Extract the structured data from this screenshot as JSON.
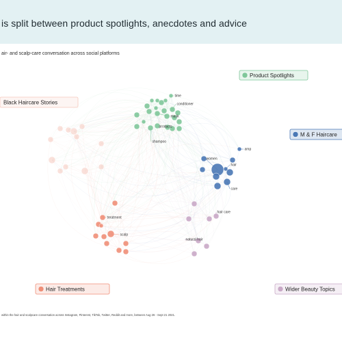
{
  "title": "is split between product spotlights, anecdotes and advice",
  "subtitle": "air- and scalp-care conversation across social platforms",
  "footnote": "within the hair and scalpcare conversation across Instagram, Pinterest, TikTok, Twitter, Reddit and more, between Aug 26 - Sept 21 2021.",
  "colors": {
    "band": "#e3f1f3",
    "product_spotlights": "#7fc79a",
    "black_haircare_stories": "#f6c9bd",
    "m_f_haircare": "#4a78b5",
    "hair_treatments": "#ef8f78",
    "wider_beauty_topics": "#c9a9c7"
  },
  "chart_data": {
    "type": "network",
    "clusters": [
      {
        "id": "product_spotlights",
        "name": "Product Spotlights",
        "color": "#7fc79a",
        "labeled_terms": [
          "time",
          "conditioner",
          "mask",
          "products",
          "shampoo"
        ]
      },
      {
        "id": "black_haircare_stories",
        "name": "Black Haircare Stories",
        "color": "#f6c9bd",
        "labeled_terms": []
      },
      {
        "id": "m_f_haircare",
        "name": "M & F Haircare",
        "color": "#4a78b5",
        "labeled_terms": [
          "amp",
          "women",
          "hair",
          "care"
        ]
      },
      {
        "id": "hair_treatments",
        "name": "Hair Treatments",
        "color": "#ef8f78",
        "labeled_terms": [
          "treatment",
          "scalp"
        ]
      },
      {
        "id": "wider_beauty_topics",
        "name": "Wider Beauty Topics",
        "color": "#c9a9c7",
        "labeled_terms": [
          "hair care",
          "natural hair"
        ]
      }
    ]
  }
}
